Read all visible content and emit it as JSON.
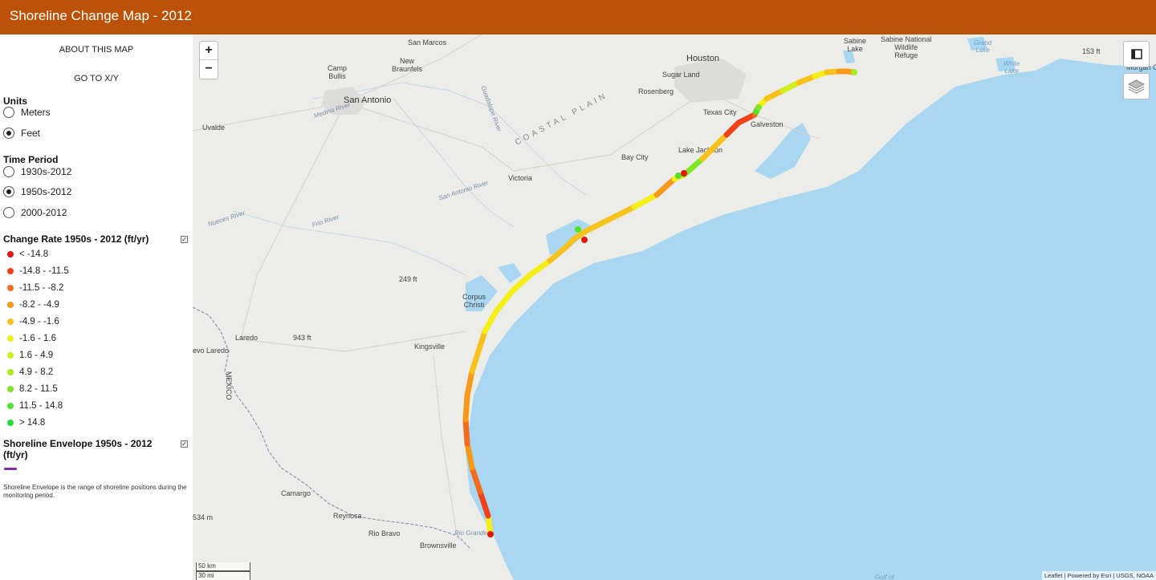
{
  "header": {
    "title": "Shoreline Change Map - 2012"
  },
  "sidebar": {
    "about_label": "ABOUT THIS MAP",
    "goto_label": "GO TO X/Y",
    "units": {
      "title": "Units",
      "options": [
        "Meters",
        "Feet"
      ],
      "selected": "Feet"
    },
    "time_period": {
      "title": "Time Period",
      "options": [
        "1930s-2012",
        "1950s-2012",
        "2000-2012"
      ],
      "selected": "1950s-2012"
    },
    "change_rate": {
      "title": "Change Rate 1950s - 2012 (ft/yr)",
      "checked": true,
      "items": [
        {
          "label": "< -14.8",
          "color": "#e8140e"
        },
        {
          "label": "-14.8 - -11.5",
          "color": "#f0421a"
        },
        {
          "label": "-11.5 - -8.2",
          "color": "#f56b1e"
        },
        {
          "label": "-8.2 - -4.9",
          "color": "#f79a1b"
        },
        {
          "label": "-4.9 - -1.6",
          "color": "#f8c21d"
        },
        {
          "label": "-1.6 - 1.6",
          "color": "#f5ee18"
        },
        {
          "label": "1.6 - 4.9",
          "color": "#d3ee1e"
        },
        {
          "label": "4.9 - 8.2",
          "color": "#a8ec22"
        },
        {
          "label": "8.2 - 11.5",
          "color": "#7ee826"
        },
        {
          "label": "11.5 - 14.8",
          "color": "#4ee42c"
        },
        {
          "label": "> 14.8",
          "color": "#1ee030"
        }
      ]
    },
    "envelope": {
      "title": "Shoreline Envelope 1950s - 2012 (ft/yr)",
      "checked": true,
      "color": "#8a2aa8",
      "note": "Shoreline Envelope is the range of shoreline positions during the monitoring period."
    }
  },
  "map": {
    "zoom_in": "+",
    "zoom_out": "−",
    "water_color": "#a9d7f1",
    "land_color": "#ecede9",
    "labels": {
      "san_marcos": "San Marcos",
      "new_braunfels": "New\nBraunfels",
      "camp_bullis": "Camp\nBullis",
      "san_antonio": "San Antonio",
      "medina_river": "Medina River",
      "uvalde": "Uvalde",
      "houston": "Houston",
      "sugar_land": "Sugar Land",
      "rosenberg": "Rosenberg",
      "texas_city": "Texas City",
      "galveston": "Galveston",
      "lake_jackson": "Lake Jackson",
      "bay_city": "Bay City",
      "victoria": "Victoria",
      "coastal_plain": "COASTAL PLAIN",
      "san_antonio_river": "San Antonio River",
      "guadalupe_river": "Guadalupe River",
      "nueces_river": "Nueces River",
      "frio_river": "Frio River",
      "corpus_christi": "Corpus\nChristi",
      "kingsville": "Kingsville",
      "laredo": "Laredo",
      "nuevo_laredo": "evo Laredo",
      "mexico": "MEXICO",
      "camargo": "Camargo",
      "reynosa": "Reynosa",
      "rio_bravo": "Rio Bravo",
      "brownsville": "Brownsville",
      "rio_grande": "Rio Grande",
      "sabine_lake": "Sabine\nLake",
      "sabine_refuge": "Sabine National\nWildlife\nRefuge",
      "grand_lake": "Grand\nLake",
      "white_lake": "White\nLake",
      "elev_249": "249 ft",
      "elev_943": "943 ft",
      "elev_534": "534 m",
      "elev_153": "153 ft",
      "gulf": "Gulf of",
      "morgan_city": "Morgan Cit"
    },
    "scale": {
      "km": "50 km",
      "mi": "30 mi"
    },
    "attribution": "Leaflet | Powered by Esri | USGS, NOAA"
  }
}
